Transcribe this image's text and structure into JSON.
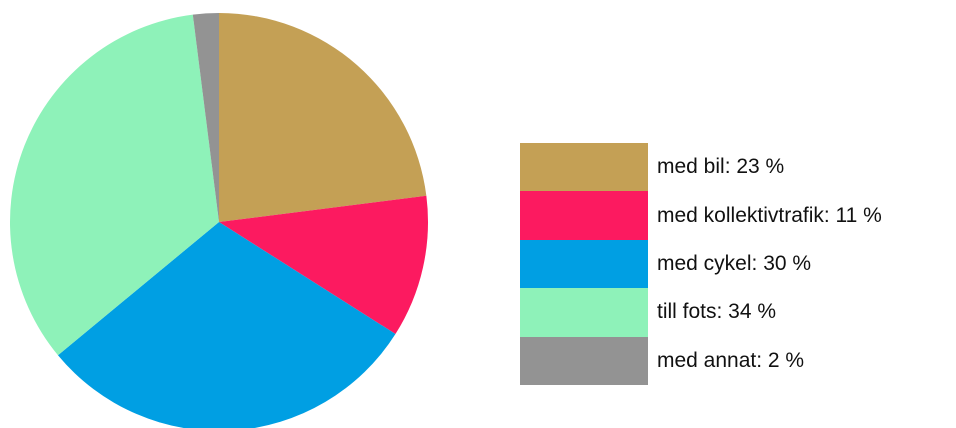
{
  "chart_data": {
    "type": "pie",
    "slices": [
      {
        "label": "med bil: 23 %",
        "value": 23,
        "color": "#c4a055"
      },
      {
        "label": "med kollektivtrafik: 11 %",
        "value": 11,
        "color": "#fc1a60"
      },
      {
        "label": "med cykel: 30 %",
        "value": 30,
        "color": "#009fe3"
      },
      {
        "label": "till fots: 34 %",
        "value": 34,
        "color": "#8ef2b9"
      },
      {
        "label": "med annat: 2 %",
        "value": 2,
        "color": "#939393"
      }
    ],
    "legend_position": "right"
  }
}
